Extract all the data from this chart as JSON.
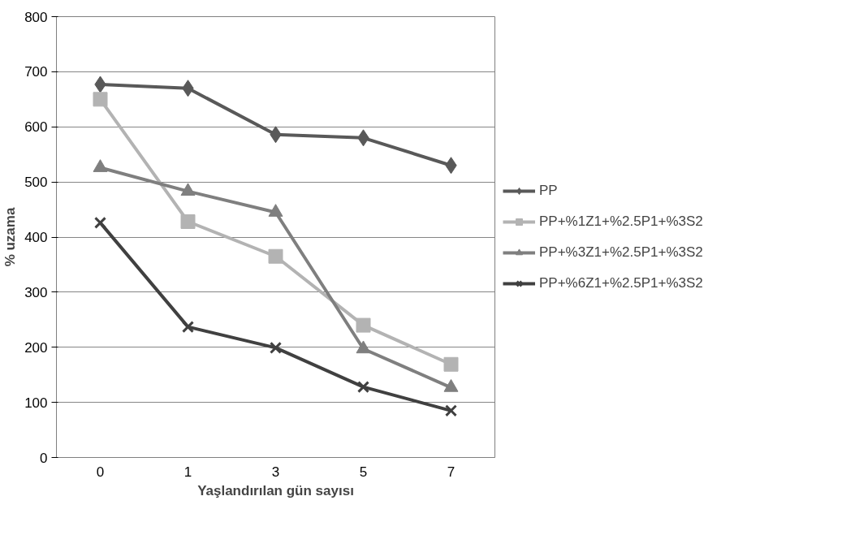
{
  "chart_data": {
    "type": "line",
    "xlabel": "Yaşlandırılan gün sayısı",
    "ylabel": "% uzama",
    "categories": [
      "0",
      "1",
      "3",
      "5",
      "7"
    ],
    "ylim": [
      0,
      800
    ],
    "yticks": [
      0,
      100,
      200,
      300,
      400,
      500,
      600,
      700,
      800
    ],
    "grid": "y",
    "legend": "right",
    "line_style": "solid",
    "series": [
      {
        "name": "PP",
        "color": "#595959",
        "marker": "diamond",
        "values": [
          677,
          670,
          586,
          580,
          530
        ]
      },
      {
        "name": "PP+%1Z1+%2.5P1+%3S2",
        "color": "#b3b3b3",
        "marker": "square",
        "values": [
          650,
          428,
          365,
          240,
          169
        ]
      },
      {
        "name": "PP+%3Z1+%2.5P1+%3S2",
        "color": "#7f7f7f",
        "marker": "triangle",
        "values": [
          526,
          483,
          445,
          197,
          127
        ]
      },
      {
        "name": "PP+%6Z1+%2.5P1+%3S2",
        "color": "#404040",
        "marker": "cross",
        "values": [
          426,
          237,
          199,
          128,
          85
        ]
      }
    ]
  }
}
